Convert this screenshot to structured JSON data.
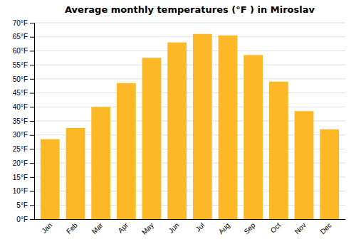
{
  "chart_data": {
    "type": "bar",
    "title": "Average monthly temperatures (°F ) in Miroslav",
    "categories": [
      "Jan",
      "Feb",
      "Mar",
      "Apr",
      "May",
      "Jun",
      "Jul",
      "Aug",
      "Sep",
      "Oct",
      "Nov",
      "Dec"
    ],
    "values": [
      28.5,
      32.5,
      40.0,
      48.5,
      57.5,
      63.0,
      66.0,
      65.5,
      58.5,
      49.0,
      38.5,
      32.0
    ],
    "color": "#FDB827",
    "ylim": [
      0,
      70
    ],
    "yticks": [
      {
        "value": 0,
        "label": "0°F"
      },
      {
        "value": 5,
        "label": "5°F"
      },
      {
        "value": 10,
        "label": "10°F"
      },
      {
        "value": 15,
        "label": "15°F"
      },
      {
        "value": 20,
        "label": "20°F"
      },
      {
        "value": 25,
        "label": "25°F"
      },
      {
        "value": 30,
        "label": "30°F"
      },
      {
        "value": 35,
        "label": "35°F"
      },
      {
        "value": 40,
        "label": "40°F"
      },
      {
        "value": 45,
        "label": "45°F"
      },
      {
        "value": 50,
        "label": "50°F"
      },
      {
        "value": 55,
        "label": "55°F"
      },
      {
        "value": 60,
        "label": "60°F"
      },
      {
        "value": 65,
        "label": "65°F"
      },
      {
        "value": 70,
        "label": "70°F"
      }
    ],
    "grid": true
  }
}
